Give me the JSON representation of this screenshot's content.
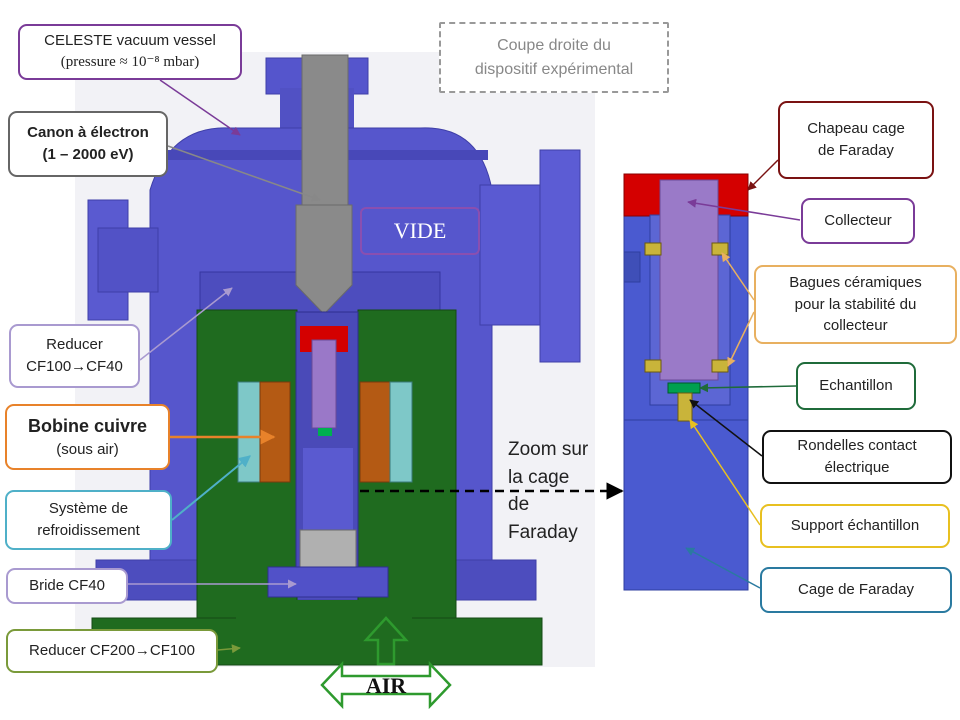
{
  "labels": {
    "vessel": {
      "line1": "CELESTE vacuum vessel",
      "line2": "(pressure ≈ 10⁻⁸ mbar)"
    },
    "canon": {
      "line1": "Canon à électron",
      "line2": "(1 – 2000 eV)"
    },
    "reducer_cf100": {
      "line1": "Reducer",
      "line2": "CF100→CF40"
    },
    "bobine": {
      "line1": "Bobine cuivre",
      "line2": "(sous air)"
    },
    "refroid": {
      "line1": "Système de",
      "line2": "refroidissement"
    },
    "bride": {
      "text": "Bride CF40"
    },
    "reducer_cf200": {
      "text": "Reducer CF200→CF100"
    },
    "coupe": {
      "line1": "Coupe droite du",
      "line2": "dispositif expérimental"
    },
    "vide": {
      "text": "VIDE"
    },
    "air": {
      "text": "AIR"
    },
    "zoom": {
      "line1": "Zoom sur",
      "line2": "la cage",
      "line3": "de",
      "line4": "Faraday"
    },
    "chapeau": {
      "line1": "Chapeau cage",
      "line2": "de Faraday"
    },
    "collecteur": {
      "text": "Collecteur"
    },
    "bagues": {
      "line1": "Bagues céramiques",
      "line2": "pour la stabilité du",
      "line3": "collecteur"
    },
    "echantillon": {
      "text": "Echantillon"
    },
    "rondelles": {
      "line1": "Rondelles contact",
      "line2": "électrique"
    },
    "support": {
      "text": "Support échantillon"
    },
    "cage": {
      "text": "Cage de Faraday"
    }
  },
  "colors": {
    "vessel": "#5555cc",
    "vessel_dark": "#3f3fa8",
    "green": "#1f6b1f",
    "copper": "#b45a14",
    "cooling": "#7ec8c8",
    "gun": "#8a8a8a",
    "red": "#d40000",
    "collector": "#9a78c8",
    "ceramic": "#c9b43a",
    "callout_purple": "#7a3b98",
    "callout_gray": "#666666",
    "callout_lavender": "#a99ad0",
    "callout_orange": "#e8822a",
    "callout_teal": "#4fb0c8",
    "callout_green_border": "#7a9a3a",
    "callout_darkred": "#7a1212",
    "callout_darkgreen": "#1f6b3a",
    "callout_black": "#111111",
    "callout_yellow": "#e8c020",
    "callout_blue": "#2a7aa0"
  }
}
